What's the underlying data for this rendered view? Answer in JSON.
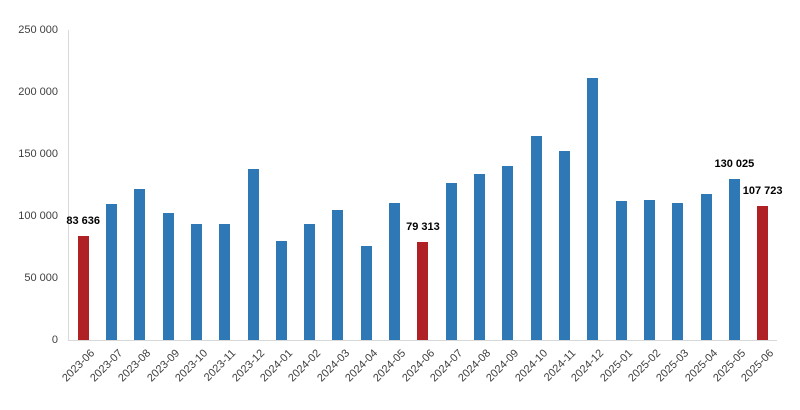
{
  "chart_data": {
    "type": "bar",
    "title": "",
    "xlabel": "",
    "ylabel": "",
    "grid": false,
    "legend": false,
    "x_tick_rotation": 45,
    "ylim": [
      0,
      250000
    ],
    "categories": [
      "2023-06",
      "2023-07",
      "2023-08",
      "2023-09",
      "2023-10",
      "2023-11",
      "2023-12",
      "2024-01",
      "2024-02",
      "2024-03",
      "2024-04",
      "2024-05",
      "2024-06",
      "2024-07",
      "2024-08",
      "2024-09",
      "2024-10",
      "2024-11",
      "2024-12",
      "2025-01",
      "2025-02",
      "2025-03",
      "2025-04",
      "2025-05",
      "2025-06"
    ],
    "values": [
      83636,
      109500,
      121400,
      102500,
      93700,
      93600,
      138000,
      79900,
      93400,
      105000,
      75500,
      110400,
      79313,
      126900,
      133500,
      140500,
      164700,
      152700,
      211500,
      111800,
      112600,
      110600,
      118100,
      130025,
      107723
    ],
    "highlight_categories": [
      "2023-06",
      "2024-06",
      "2025-06"
    ],
    "annotations": [
      {
        "category": "2023-06",
        "label": "83 636"
      },
      {
        "category": "2024-06",
        "label": "79 313"
      },
      {
        "category": "2025-05",
        "label": "130 025"
      },
      {
        "category": "2025-06",
        "label": "107 723"
      }
    ],
    "y_ticks": [
      {
        "value": 0,
        "label": "0"
      },
      {
        "value": 50000,
        "label": "50 000"
      },
      {
        "value": 100000,
        "label": "100 000"
      },
      {
        "value": 150000,
        "label": "150 000"
      },
      {
        "value": 200000,
        "label": "200 000"
      },
      {
        "value": 250000,
        "label": "250 000"
      }
    ],
    "colors": {
      "bar_default": "#2E78B5",
      "bar_highlight": "#B02126",
      "axis_line": "#D9D9D9",
      "tick_text": "#404040",
      "label_text": "#000000"
    }
  }
}
